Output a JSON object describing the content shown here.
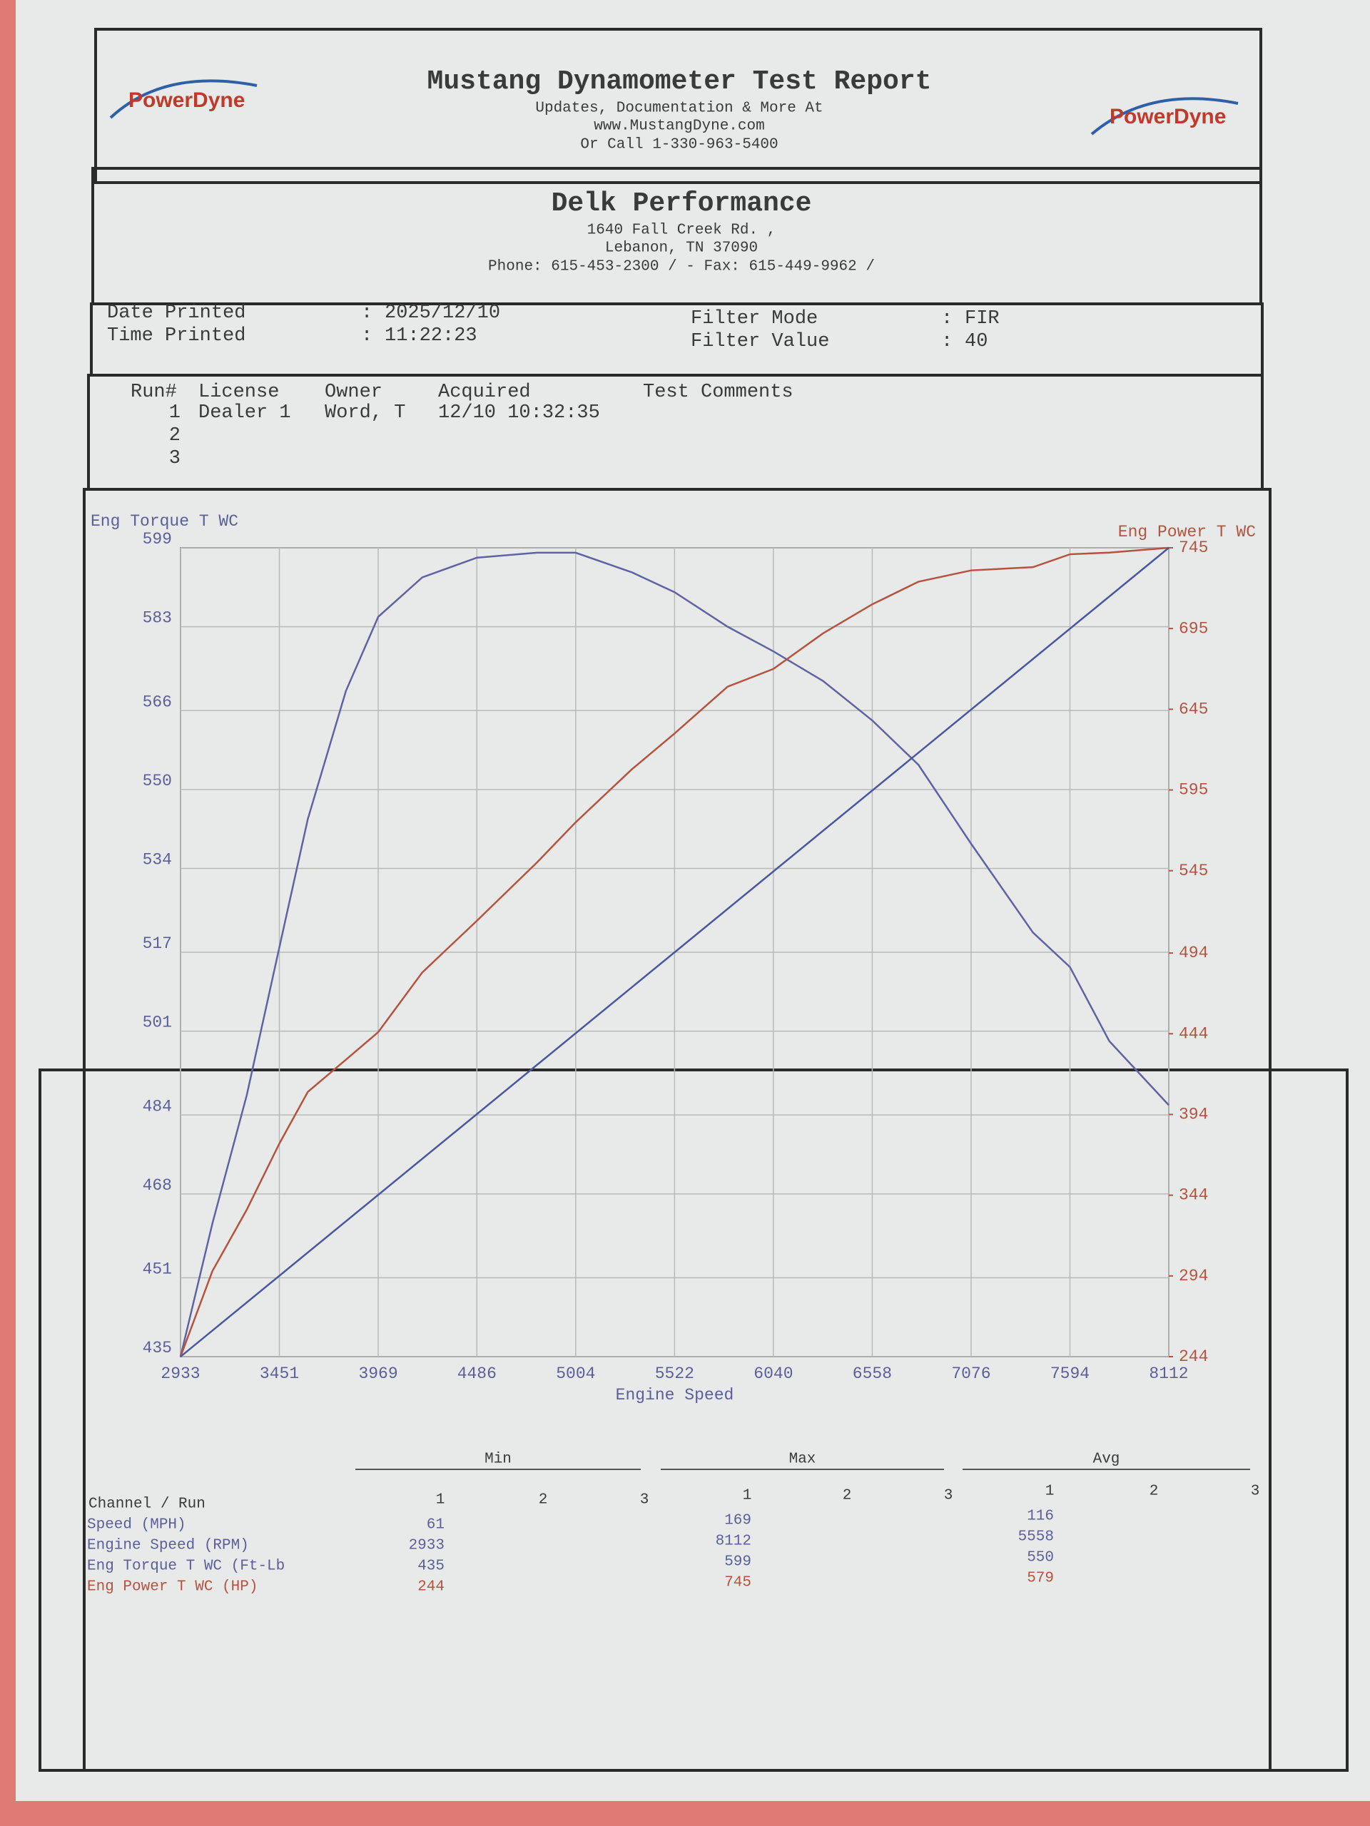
{
  "header": {
    "logo": "PowerDyne",
    "title": "Mustang Dynamometer Test Report",
    "lines": [
      "Updates, Documentation & More At",
      "www.MustangDyne.com",
      "Or Call 1-330-963-5400"
    ]
  },
  "shop": {
    "name": "Delk Performance",
    "lines": [
      "1640 Fall Creek Rd. ,",
      "Lebanon, TN  37090",
      "Phone: 615-453-2300 /  - Fax: 615-449-9962 /"
    ]
  },
  "print_info": {
    "separator": ":",
    "items": [
      {
        "label": "Date Printed",
        "value": "2025/12/10"
      },
      {
        "label": "Time Printed",
        "value": "11:22:23"
      },
      {
        "label": "Filter Mode",
        "value": "FIR"
      },
      {
        "label": "Filter Value",
        "value": "40"
      }
    ]
  },
  "runs": {
    "columns": [
      "Run#",
      "License",
      "Owner",
      "Acquired",
      "Test Comments"
    ],
    "rows": [
      [
        "1",
        "Dealer 1",
        "Word, T",
        "12/10 10:32:35"
      ],
      [
        "2"
      ],
      [
        "3"
      ]
    ]
  },
  "chart_data": {
    "type": "line",
    "y_label": "Eng Torque T WC",
    "y2_label": "Eng Power T WC",
    "x_label": "Engine Speed",
    "grid": true,
    "x": [
      2933,
      3100,
      3280,
      3451,
      3600,
      3800,
      3969,
      4200,
      4486,
      4800,
      5004,
      5300,
      5522,
      5800,
      6040,
      6300,
      6558,
      6800,
      7076,
      7400,
      7594,
      7800,
      8112
    ],
    "xlim": [
      2933,
      8112
    ],
    "xticks": [
      2933,
      3451,
      3969,
      4486,
      5004,
      5522,
      6040,
      6558,
      7076,
      7594,
      8112
    ],
    "ylim": [
      435,
      599
    ],
    "yticks": [
      435,
      451,
      468,
      484,
      501,
      517,
      534,
      550,
      566,
      583,
      599
    ],
    "y2lim": [
      244,
      745
    ],
    "y2ticks": [
      244,
      294,
      344,
      394,
      444,
      494,
      545,
      595,
      645,
      695,
      745
    ],
    "series": [
      {
        "color": "#5f63a3",
        "values": [
          435,
          462,
          488,
          518,
          544,
          570,
          585,
          593,
          597,
          598,
          598,
          594,
          590,
          583,
          578,
          572,
          564,
          555,
          539,
          521,
          514,
          499,
          486
        ]
      },
      {
        "color": "#b5533f",
        "axis": "y2",
        "values": [
          244,
          297,
          335,
          376,
          408,
          428,
          445,
          482,
          514,
          550,
          575,
          608,
          630,
          659,
          670,
          692,
          710,
          724,
          731,
          733,
          741,
          742,
          745
        ]
      },
      {
        "color": "#4a56a0",
        "x": [
          2933,
          8112
        ],
        "values": [
          435,
          599
        ]
      }
    ]
  },
  "summary": {
    "groups": [
      "Min",
      "Max",
      "Avg"
    ],
    "run_label": "Channel / Run",
    "runs": [
      "1",
      "2",
      "3"
    ],
    "rows": [
      {
        "label": "Speed (MPH)",
        "color": "#5a5f9a",
        "min": "61",
        "max": "169",
        "avg": "116"
      },
      {
        "label": "Engine Speed (RPM)",
        "color": "#5a5f9a",
        "min": "2933",
        "max": "8112",
        "avg": "5558"
      },
      {
        "label": "Eng Torque T WC (Ft-Lb",
        "color": "#5a5f9a",
        "min": "435",
        "max": "599",
        "avg": "550"
      },
      {
        "label": "Eng Power T WC (HP)",
        "color": "#b5533f",
        "min": "244",
        "max": "745",
        "avg": "579"
      }
    ]
  }
}
